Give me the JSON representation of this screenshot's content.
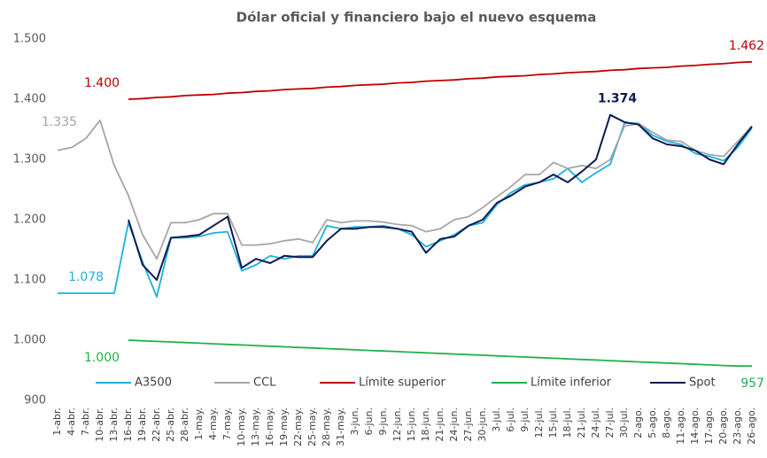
{
  "chart_data": {
    "type": "line",
    "title": "Dólar oficial y financiero bajo el nuevo esquema",
    "categories": [
      "1-abr.",
      "4-abr.",
      "7-abr.",
      "10-abr.",
      "13-abr.",
      "16-abr.",
      "19-abr.",
      "22-abr.",
      "25-abr.",
      "28-abr.",
      "1-may.",
      "4-may.",
      "7-may.",
      "10-may.",
      "13-may.",
      "16-may.",
      "19-may.",
      "22-may.",
      "25-may.",
      "28-may.",
      "31-may.",
      "3-jun.",
      "6-jun.",
      "9-jun.",
      "12-jun.",
      "15-jun.",
      "18-jun.",
      "21-jun.",
      "24-jun.",
      "27-jun.",
      "30-jun.",
      "3-jul.",
      "6-jul.",
      "9-jul.",
      "12-jul.",
      "15-jul.",
      "18-jul.",
      "21-jul.",
      "24-jul.",
      "27-jul.",
      "30-jul.",
      "2-ago.",
      "5-ago.",
      "8-ago.",
      "11-ago.",
      "14-ago.",
      "17-ago.",
      "20-ago.",
      "23-ago.",
      "26-ago."
    ],
    "series": [
      {
        "name": "A3500",
        "color": "#1fb0e0",
        "values": [
          1078,
          1078,
          1078,
          1078,
          1078,
          1195,
          1130,
          1072,
          1170,
          1170,
          1172,
          1178,
          1180,
          1115,
          1125,
          1140,
          1135,
          1140,
          1140,
          1190,
          1185,
          1188,
          1188,
          1190,
          1185,
          1175,
          1155,
          1165,
          1175,
          1190,
          1195,
          1225,
          1245,
          1258,
          1262,
          1268,
          1285,
          1262,
          1278,
          1292,
          1360,
          1360,
          1340,
          1330,
          1325,
          1310,
          1305,
          1298,
          1320,
          1352
        ],
        "value_labels": [
          "1.078",
          null,
          null,
          null,
          null,
          null,
          null,
          null,
          null,
          null,
          null,
          null,
          null,
          null,
          null,
          null,
          null,
          null,
          null,
          null,
          null,
          null,
          null,
          null,
          null,
          null,
          null,
          null,
          null,
          null,
          null,
          null,
          null,
          null,
          null,
          null,
          null,
          null,
          null,
          null,
          null,
          null,
          null,
          null,
          null,
          null,
          null,
          null,
          null,
          null
        ]
      },
      {
        "name": "CCL",
        "color": "#a6a6a6",
        "values": [
          1315,
          1320,
          1335,
          1365,
          1290,
          1240,
          1175,
          1135,
          1195,
          1195,
          1200,
          1210,
          1210,
          1158,
          1158,
          1160,
          1165,
          1168,
          1162,
          1200,
          1195,
          1198,
          1198,
          1196,
          1192,
          1190,
          1180,
          1185,
          1200,
          1205,
          1220,
          1238,
          1255,
          1275,
          1275,
          1295,
          1285,
          1290,
          1285,
          1300,
          1355,
          1360,
          1345,
          1332,
          1330,
          1315,
          1308,
          1305,
          1330,
          1355
        ],
        "value_labels": [
          null,
          null,
          "1.335",
          null,
          null,
          null,
          null,
          null,
          null,
          null,
          null,
          null,
          null,
          null,
          null,
          null,
          null,
          null,
          null,
          null,
          null,
          null,
          null,
          null,
          null,
          null,
          null,
          null,
          null,
          null,
          null,
          null,
          null,
          null,
          null,
          null,
          null,
          null,
          null,
          null,
          null,
          null,
          null,
          null,
          null,
          null,
          null,
          null,
          null,
          null
        ]
      },
      {
        "name": "Límite superior",
        "color": "#c00000",
        "values": [
          null,
          null,
          null,
          null,
          null,
          1400,
          1401,
          1403,
          1404,
          1406,
          1407,
          1408,
          1410,
          1411,
          1413,
          1414,
          1416,
          1417,
          1418,
          1420,
          1421,
          1423,
          1424,
          1425,
          1427,
          1428,
          1430,
          1431,
          1432,
          1434,
          1435,
          1437,
          1438,
          1439,
          1441,
          1442,
          1444,
          1445,
          1446,
          1448,
          1449,
          1451,
          1452,
          1453,
          1455,
          1456,
          1458,
          1459,
          1461,
          1462
        ],
        "value_labels": [
          null,
          null,
          null,
          null,
          null,
          "1.400",
          null,
          null,
          null,
          null,
          null,
          null,
          null,
          null,
          null,
          null,
          null,
          null,
          null,
          null,
          null,
          null,
          null,
          null,
          null,
          null,
          null,
          null,
          null,
          null,
          null,
          null,
          null,
          null,
          null,
          null,
          null,
          null,
          null,
          null,
          null,
          null,
          null,
          null,
          null,
          null,
          null,
          null,
          null,
          "1.462"
        ]
      },
      {
        "name": "Límite inferior",
        "color": "#22b14c",
        "values": [
          null,
          null,
          null,
          null,
          null,
          1000,
          999,
          998,
          997,
          996,
          995,
          994,
          993,
          992,
          991,
          990,
          989,
          988,
          987,
          986,
          985,
          984,
          983,
          982,
          981,
          980,
          979,
          978,
          977,
          976,
          975,
          974,
          973,
          972,
          971,
          970,
          969,
          968,
          967,
          966,
          965,
          964,
          963,
          962,
          961,
          960,
          959,
          958,
          957,
          957
        ],
        "value_labels": [
          null,
          null,
          null,
          null,
          null,
          "1.000",
          null,
          null,
          null,
          null,
          null,
          null,
          null,
          null,
          null,
          null,
          null,
          null,
          null,
          null,
          null,
          null,
          null,
          null,
          null,
          null,
          null,
          null,
          null,
          null,
          null,
          null,
          null,
          null,
          null,
          null,
          null,
          null,
          null,
          null,
          null,
          null,
          null,
          null,
          null,
          null,
          null,
          null,
          null,
          "957"
        ]
      },
      {
        "name": "Spot",
        "color": "#0d1b4f",
        "values": [
          null,
          null,
          null,
          null,
          null,
          1200,
          1125,
          1100,
          1170,
          1172,
          1175,
          1190,
          1205,
          1120,
          1135,
          1128,
          1140,
          1138,
          1138,
          1165,
          1185,
          1185,
          1188,
          1188,
          1185,
          1180,
          1145,
          1168,
          1172,
          1190,
          1200,
          1228,
          1240,
          1255,
          1262,
          1275,
          1262,
          1280,
          1300,
          1374,
          1362,
          1358,
          1335,
          1325,
          1322,
          1315,
          1300,
          1292,
          1325,
          1355
        ],
        "value_labels": [
          null,
          null,
          null,
          null,
          null,
          null,
          null,
          null,
          null,
          null,
          null,
          null,
          null,
          null,
          null,
          null,
          null,
          null,
          null,
          null,
          null,
          null,
          null,
          null,
          null,
          null,
          null,
          null,
          null,
          null,
          null,
          null,
          null,
          null,
          null,
          null,
          null,
          null,
          null,
          "1.374",
          null,
          null,
          null,
          null,
          null,
          null,
          null,
          null,
          null,
          null
        ]
      }
    ],
    "ylim": [
      900,
      1500
    ],
    "yticks": [
      900,
      {
        "value": 1000,
        "label": "1.000"
      },
      {
        "value": 1100,
        "label": "1.100"
      },
      {
        "value": 1200,
        "label": "1.200"
      },
      {
        "value": 1300,
        "label": "1.300"
      },
      {
        "value": 1400,
        "label": "1.400"
      },
      {
        "value": 1500,
        "label": "1.500"
      }
    ],
    "grid": false,
    "legend": "bottom"
  }
}
